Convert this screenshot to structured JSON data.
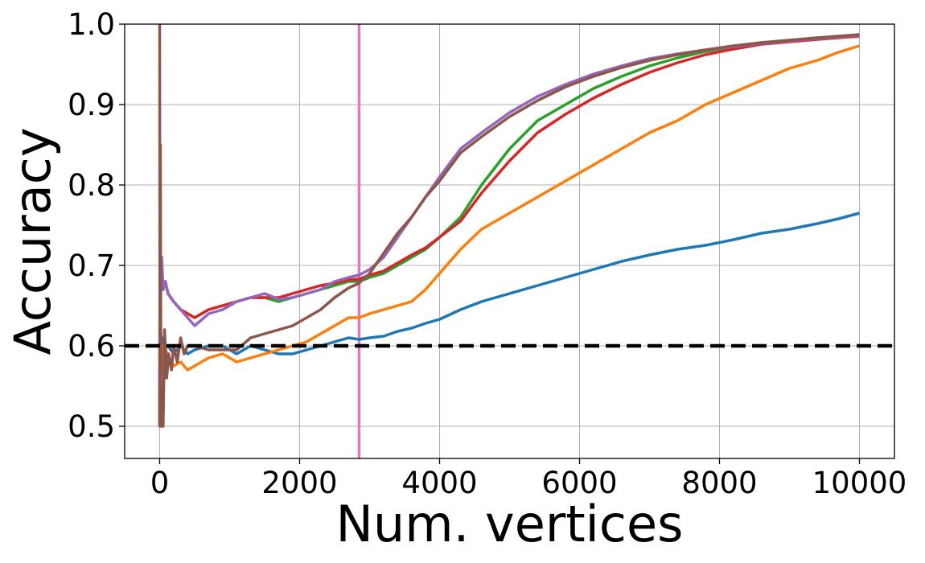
{
  "chart_data": {
    "type": "line",
    "title": "",
    "xlabel": "Num. vertices",
    "ylabel": "Accuracy",
    "xlim": [
      -500,
      10500
    ],
    "ylim": [
      0.46,
      1.0
    ],
    "xticks": [
      0,
      2000,
      4000,
      6000,
      8000,
      10000
    ],
    "xtick_labels": [
      "0",
      "2000",
      "4000",
      "6000",
      "8000",
      "10000"
    ],
    "yticks": [
      0.5,
      0.6,
      0.7,
      0.8,
      0.9,
      1.0
    ],
    "ytick_labels": [
      "0.5",
      "0.6",
      "0.7",
      "0.8",
      "0.9",
      "1.0"
    ],
    "grid": true,
    "legend": "none",
    "hline": {
      "y": 0.6,
      "color": "#000000",
      "style": "dashed"
    },
    "vline": {
      "x": 2850,
      "color": "#e377c2"
    },
    "series": [
      {
        "color": "#1f77b4",
        "x": [
          0,
          5,
          15,
          30,
          50,
          80,
          120,
          200,
          300,
          400,
          500,
          700,
          900,
          1100,
          1300,
          1500,
          1700,
          1900,
          2100,
          2300,
          2500,
          2700,
          2850,
          3000,
          3200,
          3400,
          3600,
          3800,
          4000,
          4300,
          4600,
          5000,
          5400,
          5800,
          6200,
          6600,
          7000,
          7400,
          7800,
          8200,
          8600,
          9000,
          9400,
          9700,
          10000
        ],
        "y": [
          0.5,
          0.75,
          0.62,
          0.58,
          0.61,
          0.6,
          0.6,
          0.59,
          0.6,
          0.59,
          0.595,
          0.6,
          0.6,
          0.59,
          0.6,
          0.595,
          0.59,
          0.59,
          0.595,
          0.6,
          0.605,
          0.61,
          0.608,
          0.61,
          0.612,
          0.618,
          0.622,
          0.628,
          0.633,
          0.645,
          0.655,
          0.665,
          0.675,
          0.685,
          0.695,
          0.705,
          0.713,
          0.72,
          0.725,
          0.732,
          0.74,
          0.745,
          0.752,
          0.758,
          0.765
        ]
      },
      {
        "color": "#ff7f0e",
        "x": [
          0,
          5,
          15,
          30,
          50,
          80,
          120,
          200,
          300,
          400,
          500,
          700,
          900,
          1100,
          1300,
          1500,
          1700,
          1900,
          2100,
          2300,
          2500,
          2700,
          2850,
          3000,
          3200,
          3400,
          3600,
          3800,
          4000,
          4300,
          4600,
          5000,
          5400,
          5800,
          6200,
          6600,
          7000,
          7400,
          7800,
          8200,
          8600,
          9000,
          9400,
          9700,
          10000
        ],
        "y": [
          0.5,
          0.65,
          0.56,
          0.6,
          0.57,
          0.6,
          0.58,
          0.575,
          0.58,
          0.57,
          0.575,
          0.585,
          0.59,
          0.58,
          0.585,
          0.59,
          0.595,
          0.6,
          0.605,
          0.615,
          0.625,
          0.635,
          0.635,
          0.64,
          0.645,
          0.65,
          0.655,
          0.67,
          0.69,
          0.72,
          0.745,
          0.765,
          0.785,
          0.805,
          0.825,
          0.845,
          0.865,
          0.88,
          0.9,
          0.915,
          0.93,
          0.945,
          0.955,
          0.965,
          0.973
        ]
      },
      {
        "color": "#2ca02c",
        "x": [
          0,
          5,
          15,
          30,
          50,
          80,
          120,
          200,
          300,
          400,
          500,
          700,
          900,
          1100,
          1300,
          1500,
          1700,
          1900,
          2100,
          2300,
          2500,
          2700,
          2850,
          3000,
          3200,
          3400,
          3600,
          3800,
          4000,
          4300,
          4600,
          5000,
          5400,
          5800,
          6200,
          6600,
          7000,
          7400,
          7800,
          8200,
          8600,
          9000,
          9400,
          9700,
          10000
        ],
        "y": [
          0.5,
          0.72,
          0.68,
          0.7,
          0.67,
          0.68,
          0.665,
          0.655,
          0.645,
          0.64,
          0.635,
          0.645,
          0.65,
          0.655,
          0.66,
          0.66,
          0.655,
          0.66,
          0.665,
          0.67,
          0.675,
          0.68,
          0.68,
          0.685,
          0.69,
          0.7,
          0.71,
          0.72,
          0.735,
          0.76,
          0.8,
          0.845,
          0.88,
          0.9,
          0.92,
          0.935,
          0.948,
          0.958,
          0.966,
          0.972,
          0.977,
          0.98,
          0.983,
          0.985,
          0.986
        ]
      },
      {
        "color": "#d62728",
        "x": [
          0,
          5,
          15,
          30,
          50,
          80,
          120,
          200,
          300,
          400,
          500,
          700,
          900,
          1100,
          1300,
          1500,
          1700,
          1900,
          2100,
          2300,
          2500,
          2700,
          2850,
          3000,
          3200,
          3400,
          3600,
          3800,
          4000,
          4300,
          4600,
          5000,
          5400,
          5800,
          6200,
          6600,
          7000,
          7400,
          7800,
          8200,
          8600,
          9000,
          9400,
          9700,
          10000
        ],
        "y": [
          0.5,
          0.72,
          0.68,
          0.7,
          0.67,
          0.68,
          0.665,
          0.655,
          0.645,
          0.64,
          0.635,
          0.645,
          0.65,
          0.655,
          0.66,
          0.66,
          0.66,
          0.665,
          0.67,
          0.675,
          0.678,
          0.682,
          0.683,
          0.688,
          0.693,
          0.703,
          0.713,
          0.722,
          0.735,
          0.755,
          0.79,
          0.83,
          0.865,
          0.888,
          0.908,
          0.925,
          0.94,
          0.952,
          0.962,
          0.969,
          0.975,
          0.978,
          0.981,
          0.983,
          0.985
        ]
      },
      {
        "color": "#9467bd",
        "x": [
          0,
          5,
          15,
          30,
          50,
          80,
          120,
          200,
          300,
          400,
          500,
          700,
          900,
          1100,
          1300,
          1500,
          1700,
          1900,
          2100,
          2300,
          2500,
          2700,
          2850,
          3000,
          3200,
          3400,
          3600,
          3800,
          4000,
          4300,
          4600,
          5000,
          5400,
          5800,
          6200,
          6600,
          7000,
          7400,
          7800,
          8200,
          8600,
          9000,
          9400,
          9700,
          10000
        ],
        "y": [
          0.5,
          0.72,
          0.68,
          0.71,
          0.67,
          0.68,
          0.665,
          0.655,
          0.645,
          0.635,
          0.625,
          0.64,
          0.645,
          0.655,
          0.66,
          0.665,
          0.658,
          0.66,
          0.665,
          0.67,
          0.68,
          0.685,
          0.688,
          0.695,
          0.71,
          0.735,
          0.76,
          0.785,
          0.81,
          0.845,
          0.865,
          0.89,
          0.91,
          0.925,
          0.938,
          0.948,
          0.957,
          0.963,
          0.968,
          0.972,
          0.976,
          0.979,
          0.982,
          0.984,
          0.986
        ]
      },
      {
        "color": "#8c564b",
        "x": [
          0,
          5,
          10,
          20,
          30,
          50,
          70,
          100,
          130,
          170,
          200,
          250,
          300,
          350,
          400,
          500,
          700,
          900,
          1100,
          1300,
          1500,
          1700,
          1900,
          2100,
          2300,
          2500,
          2700,
          2850,
          3000,
          3200,
          3400,
          3600,
          3800,
          4000,
          4300,
          4600,
          5000,
          5400,
          5800,
          6200,
          6600,
          7000,
          7400,
          7800,
          8200,
          8600,
          9000,
          9400,
          9700,
          10000
        ],
        "y": [
          1.0,
          0.5,
          0.85,
          0.5,
          0.55,
          0.5,
          0.62,
          0.56,
          0.59,
          0.57,
          0.6,
          0.58,
          0.61,
          0.59,
          0.6,
          0.6,
          0.595,
          0.595,
          0.595,
          0.61,
          0.615,
          0.62,
          0.625,
          0.635,
          0.645,
          0.66,
          0.672,
          0.678,
          0.69,
          0.715,
          0.74,
          0.76,
          0.785,
          0.805,
          0.84,
          0.86,
          0.885,
          0.905,
          0.922,
          0.935,
          0.946,
          0.955,
          0.962,
          0.968,
          0.973,
          0.977,
          0.98,
          0.983,
          0.985,
          0.987
        ]
      }
    ]
  }
}
